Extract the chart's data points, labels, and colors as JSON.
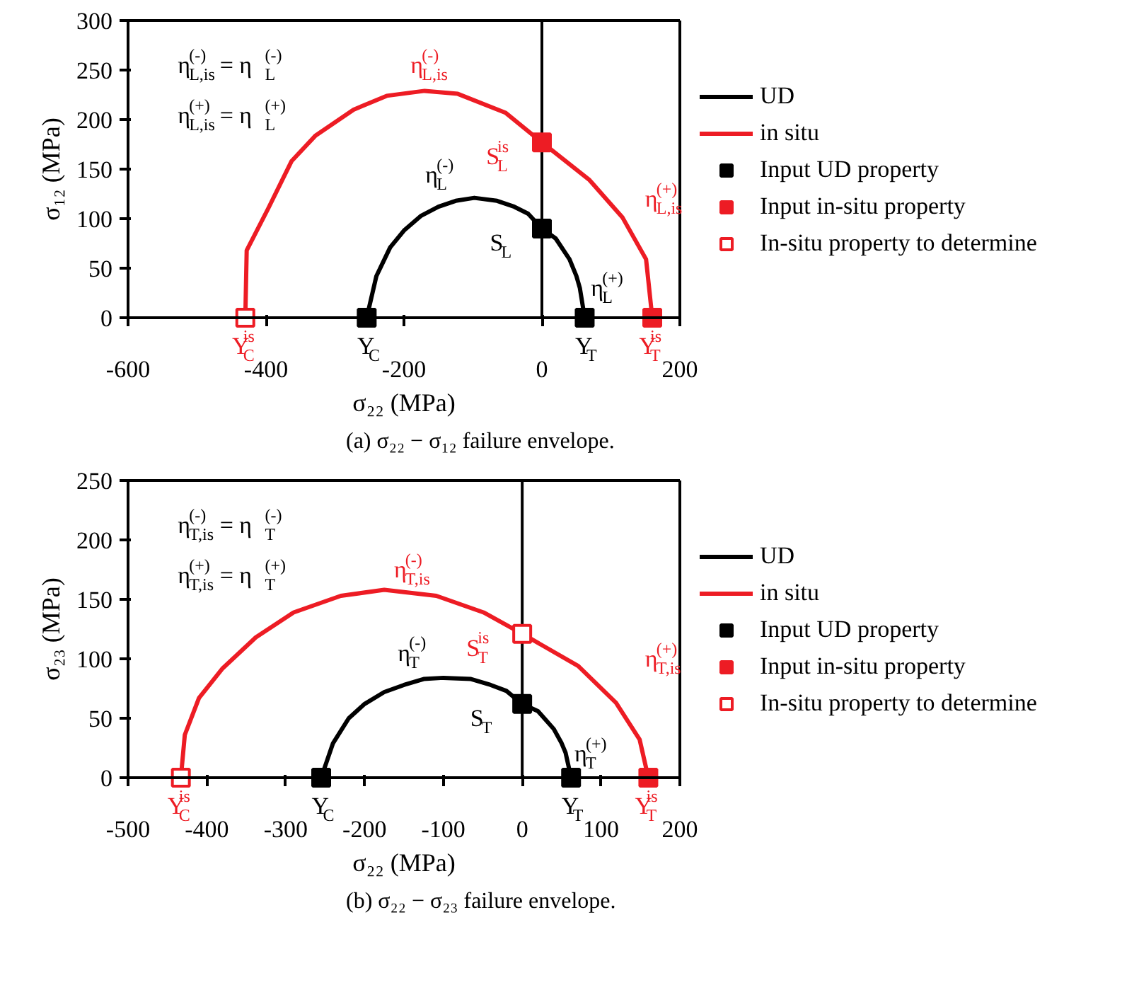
{
  "chart_data": [
    {
      "type": "line",
      "title": "(a) σ₂₂ − σ₁₂ failure envelope.",
      "xlabel": "σ₂₂ (MPa)",
      "ylabel": "σ₁₂ (MPa)",
      "xlim": [
        -600,
        200
      ],
      "xticks": [
        -600,
        -400,
        -200,
        0,
        200
      ],
      "ylim": [
        0,
        300
      ],
      "yticks": [
        0,
        50,
        100,
        150,
        200,
        250,
        300
      ],
      "legend": "right",
      "ref_lines": [
        {
          "axis": "x",
          "value": 0,
          "color": "#000000"
        }
      ],
      "series": [
        {
          "name": "UD",
          "color": "#000000",
          "x": [
            -254,
            -240,
            -220,
            -200,
            -175,
            -150,
            -125,
            -98,
            -65,
            -40,
            -20,
            0,
            20,
            40,
            50,
            55,
            62
          ],
          "values": [
            0,
            42,
            71,
            88,
            103,
            112,
            118,
            121,
            118,
            112,
            105,
            90,
            80,
            59,
            42,
            30,
            0
          ]
        },
        {
          "name": "in situ",
          "color": "#ed1c24",
          "x": [
            -430,
            -428,
            -397,
            -363,
            -328,
            -273,
            -225,
            -170,
            -122,
            -53,
            0,
            69,
            117,
            151,
            160
          ],
          "values": [
            0,
            68,
            110,
            158,
            184,
            210,
            224,
            229,
            226,
            207,
            177,
            139,
            101,
            59,
            0
          ]
        },
        {
          "type": "scatter",
          "name": "Input UD property",
          "color": "#000000",
          "marker": "square",
          "x": [
            -254,
            62,
            0
          ],
          "values": [
            0,
            0,
            90
          ]
        },
        {
          "type": "scatter",
          "name": "Input in-situ property",
          "color": "#ed1c24",
          "marker": "square",
          "x": [
            0,
            160
          ],
          "values": [
            177,
            0
          ]
        },
        {
          "type": "scatter",
          "name": "In-situ property to determine",
          "color": "#ed1c24",
          "marker": "square_open",
          "x": [
            -430
          ],
          "values": [
            0
          ]
        }
      ],
      "annotations": [
        "η$^{(-)}$$_{L,is}$ = η$^{(-)}$$_{L}$",
        "η$^{(+)}$$_{L,is}$ = η$^{(+)}$$_{L}$",
        "η$^{(-)}$$_{L,is}$",
        "η$^{(-)}$$_{L}$",
        "η$^{(+)}$$_{L}$",
        "η$^{(+)}$$_{L,is}$",
        {
          "text": "Y$^{is}$$_{C}$",
          "x": -430,
          "y": 0
        },
        {
          "text": "Y$_{C}$",
          "x": -254,
          "y": 0
        },
        {
          "text": "Y$_{T}$",
          "x": 62,
          "y": 0
        },
        {
          "text": "Y$^{is}$$_{T}$",
          "x": 160,
          "y": 0
        },
        {
          "text": "S$^{is}$$_{L}$",
          "x": 0,
          "y": 177
        },
        {
          "text": "S$_{L}$",
          "x": 0,
          "y": 90
        }
      ]
    },
    {
      "type": "line",
      "title": "(b) σ₂₂ − σ₂₃ failure envelope.",
      "xlabel": "σ₂₂ (MPa)",
      "ylabel": "σ₂₃ (MPa)",
      "xlim": [
        -500,
        200
      ],
      "xticks": [
        -500,
        -400,
        -300,
        -200,
        -100,
        0,
        100,
        200
      ],
      "ylim": [
        0,
        250
      ],
      "yticks": [
        0,
        50,
        100,
        150,
        200,
        250
      ],
      "legend": "right",
      "ref_lines": [
        {
          "axis": "x",
          "value": 0,
          "color": "#000000"
        }
      ],
      "series": [
        {
          "name": "UD",
          "color": "#000000",
          "x": [
            -255,
            -240,
            -220,
            -200,
            -175,
            -150,
            -125,
            -100,
            -65,
            -40,
            -20,
            0,
            20,
            40,
            50,
            55,
            62
          ],
          "values": [
            0,
            29,
            50,
            62,
            72,
            78,
            83,
            84,
            83,
            78,
            73,
            62,
            56,
            41,
            29,
            21,
            0
          ]
        },
        {
          "name": "in situ",
          "color": "#ed1c24",
          "x": [
            -433,
            -428,
            -410,
            -380,
            -338,
            -290,
            -230,
            -175,
            -109,
            -49,
            0,
            71,
            119,
            149,
            160
          ],
          "values": [
            0,
            36,
            67,
            92,
            118,
            139,
            153,
            158,
            153,
            139,
            121,
            94,
            63,
            32,
            0
          ]
        },
        {
          "type": "scatter",
          "name": "Input UD property",
          "color": "#000000",
          "marker": "square",
          "x": [
            -255,
            62,
            0
          ],
          "values": [
            0,
            0,
            62
          ]
        },
        {
          "type": "scatter",
          "name": "Input in-situ property",
          "color": "#ed1c24",
          "marker": "square",
          "x": [
            160
          ],
          "values": [
            0
          ]
        },
        {
          "type": "scatter",
          "name": "In-situ property to determine",
          "color": "#ed1c24",
          "marker": "square_open",
          "x": [
            -433,
            0
          ],
          "values": [
            0,
            121
          ]
        }
      ],
      "annotations": [
        "η$^{(-)}$$_{T,is}$ = η$^{(-)}$$_{T}$",
        "η$^{(+)}$$_{T,is}$ = η$^{(+)}$$_{T}$",
        "η$^{(-)}$$_{T,is}$",
        "η$^{(-)}$$_{T}$",
        "η$^{(+)}$$_{T}$",
        "η$^{(+)}$$_{T,is}$",
        {
          "text": "Y$^{is}$$_{C}$",
          "x": -433,
          "y": 0
        },
        {
          "text": "Y$_{C}$",
          "x": -255,
          "y": 0
        },
        {
          "text": "Y$_{T}$",
          "x": 62,
          "y": 0
        },
        {
          "text": "Y$^{is}$$_{T}$",
          "x": 160,
          "y": 0
        },
        {
          "text": "S$^{is}$$_{T}$",
          "x": 0,
          "y": 121
        },
        {
          "text": "S$_{T}$",
          "x": 0,
          "y": 62
        }
      ]
    }
  ]
}
